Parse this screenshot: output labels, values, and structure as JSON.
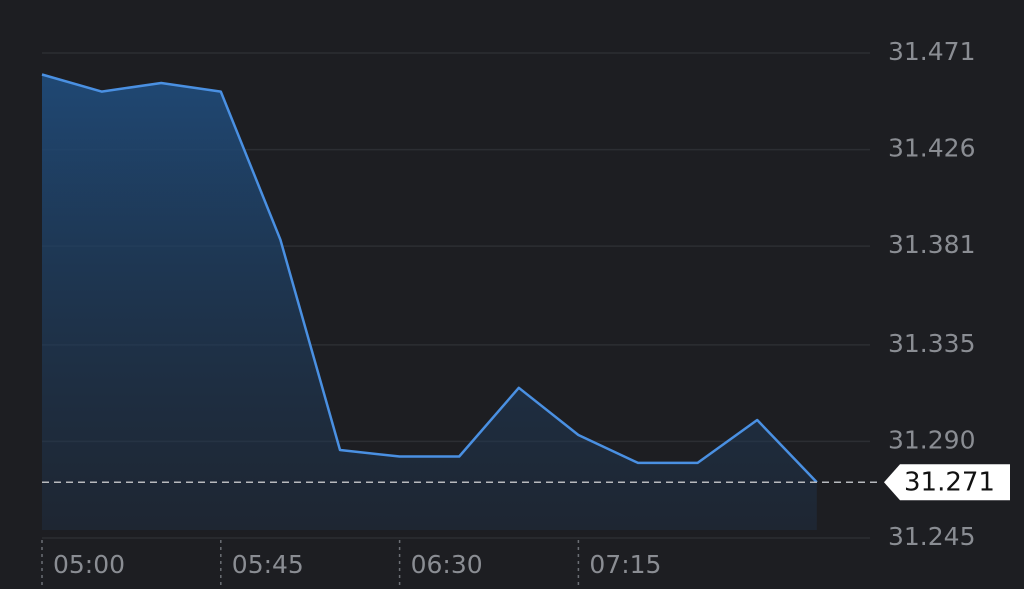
{
  "chart_data": {
    "type": "area",
    "categories": [
      "05:00",
      null,
      null,
      "05:45",
      null,
      null,
      "06:30",
      null,
      null,
      "07:15",
      null,
      null,
      null,
      null
    ],
    "values": [
      31.461,
      31.453,
      31.457,
      31.453,
      31.384,
      31.286,
      31.283,
      31.283,
      31.315,
      31.293,
      31.28,
      31.28,
      31.3,
      31.271
    ],
    "color": "#4a90e2",
    "ylim": [
      31.245,
      31.471
    ],
    "yticks": [
      31.245,
      {
        "value": 31.29,
        "label": "31.290"
      },
      31.335,
      31.381,
      31.426,
      31.471
    ],
    "grid": true,
    "current_value": 31.271
  }
}
